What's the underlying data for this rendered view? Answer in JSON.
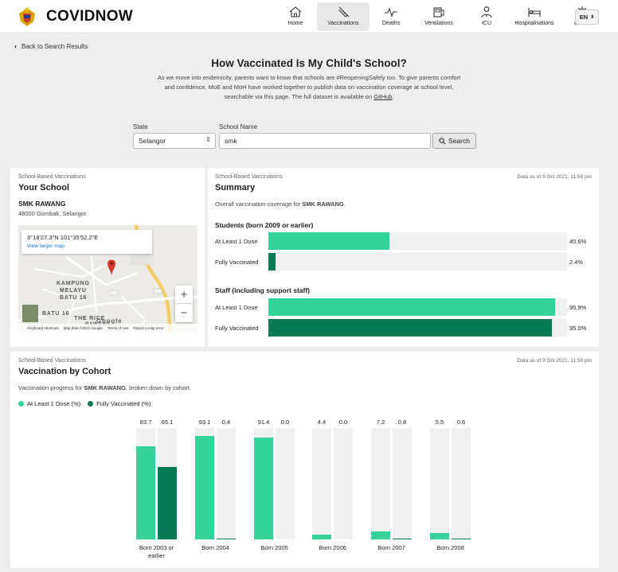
{
  "header": {
    "brand": "COVIDNOW",
    "nav": [
      {
        "label": "Home",
        "icon": "home-icon",
        "active": false
      },
      {
        "label": "Vaccinations",
        "icon": "syringe-icon",
        "active": true
      },
      {
        "label": "Deaths",
        "icon": "pulse-icon",
        "active": false
      },
      {
        "label": "Ventilations",
        "icon": "ventilator-icon",
        "active": false
      },
      {
        "label": "ICU",
        "icon": "doctor-icon",
        "active": false
      },
      {
        "label": "Hospitalisations",
        "icon": "hospital-bed-icon",
        "active": false
      },
      {
        "label": "Cases",
        "icon": "virus-icon",
        "active": false
      }
    ],
    "language": "EN"
  },
  "back_link": "Back to Search Results",
  "page_title": "How Vaccinated Is My Child's School?",
  "intro": {
    "text": "As we move into endemicity, parents want to know that schools are #ReopeningSafely too. To give parents comfort and confidence, MoE and MoH have worked together to publish data on vaccination coverage at school level, searchable via this page. The full dataset is available on ",
    "link": "GitHub",
    "end": "."
  },
  "search": {
    "state_label": "State",
    "state_value": "Selangor",
    "school_label": "School Name",
    "school_value": "smk",
    "button": "Search"
  },
  "school_card": {
    "kicker": "School-Based Vaccinations",
    "title": "Your School",
    "name": "SMK RAWANG",
    "address": "48000 Gombak, Selangor",
    "map": {
      "coords": "3°18'27.3\"N 101°35'52.2\"E",
      "link": "View larger map",
      "place1a": "KAMPUNG",
      "place1b": "MELAYU",
      "place1c": "BATU 16",
      "place2": "BATU 16",
      "place3": "THE RICE",
      "place4": "RAWANG",
      "footer_items": [
        "Keyboard shortcuts",
        "Map data ©2021 Google",
        "Terms of Use",
        "Report a map error"
      ],
      "google": "Google"
    }
  },
  "summary_card": {
    "kicker": "School-Based Vaccinations",
    "title": "Summary",
    "as_of": "Data as of 9 Oct 2021, 11:59 pm",
    "desc_prefix": "Overall vaccination coverage for ",
    "desc_school": "SMK RAWANG",
    "desc_suffix": ".",
    "groups": [
      {
        "heading": "Students (born 2009 or earlier)",
        "rows": [
          {
            "label": "At Least 1 Dose",
            "value": 40.6,
            "display": "40.6%",
            "kind": "dose1"
          },
          {
            "label": "Fully Vaccinated",
            "value": 2.4,
            "display": "2.4%",
            "kind": "full"
          }
        ]
      },
      {
        "heading": "Staff (including support staff)",
        "rows": [
          {
            "label": "At Least 1 Dose",
            "value": 95.9,
            "display": "95.9%",
            "kind": "dose1"
          },
          {
            "label": "Fully Vaccinated",
            "value": 95.0,
            "display": "95.0%",
            "kind": "full"
          }
        ]
      }
    ]
  },
  "cohort_card": {
    "kicker": "School-Based Vaccinations",
    "title": "Vaccination by Cohort",
    "as_of": "Data as of 9 Oct 2021, 11:59 pm",
    "desc_prefix": "Vaccination progress for ",
    "desc_school": "SMK RAWANG",
    "desc_suffix": ", broken down by cohort."
  },
  "colors": {
    "dose1": "#34d399",
    "full": "#067a54",
    "track": "#f0f0f0"
  },
  "chart_data": {
    "type": "bar",
    "categories": [
      "Born 2003 or earlier",
      "Born 2004",
      "Born 2005",
      "Born 2006",
      "Born 2007",
      "Born 2008"
    ],
    "series": [
      {
        "name": "At Least 1 Dose (%)",
        "values": [
          83.7,
          93.1,
          91.4,
          4.4,
          7.2,
          5.5
        ]
      },
      {
        "name": "Fully Vaccinated (%)",
        "values": [
          65.1,
          0.4,
          0.0,
          0.0,
          0.8,
          0.6
        ]
      }
    ],
    "value_labels": [
      [
        "83.7",
        "93.1",
        "91.4",
        "4.4",
        "7.2",
        "5.5"
      ],
      [
        "65.1",
        "0.4",
        "0.0",
        "0.0",
        "0.8",
        "0.6"
      ]
    ],
    "ylim": [
      0,
      100
    ],
    "legend": "top-left",
    "grid": false
  }
}
